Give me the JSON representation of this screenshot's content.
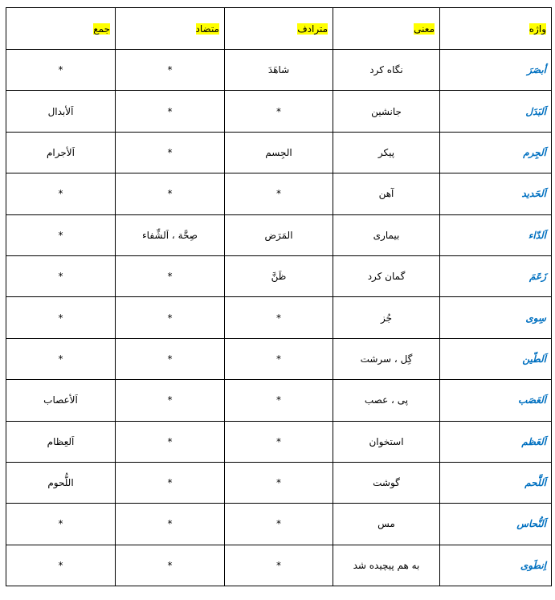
{
  "headers": [
    "واژه",
    "معنی",
    "مترادف",
    "متضاد",
    "جمع"
  ],
  "highlight_color": "#ffff00",
  "word_color": "#0070c0",
  "rows": [
    [
      "أبصَرَ",
      "نگاه کرد",
      "شاهَدَ",
      "*",
      "*"
    ],
    [
      "اَلبَدَل",
      "جانشین",
      "*",
      "*",
      "اَلأبدال"
    ],
    [
      "اَلجِرم",
      "پیکر",
      "الجِسم",
      "*",
      "اَلأجرام"
    ],
    [
      "اَلحَدید",
      "آهن",
      "*",
      "*",
      "*"
    ],
    [
      "اَلدّاء",
      "بیماری",
      "المَرَض",
      "صِحَّة ، اَلشِّفاء",
      "*"
    ],
    [
      "زَعَمَ",
      "گمان کرد",
      "ظَنَّ",
      "*",
      "*"
    ],
    [
      "سِوی",
      "جُز",
      "*",
      "*",
      "*"
    ],
    [
      "اَلطّین",
      "گِل ، سرشت",
      "*",
      "*",
      "*"
    ],
    [
      "اَلعَصَب",
      "پی ، عصب",
      "*",
      "*",
      "اَلأعصاب"
    ],
    [
      "اَلعَظم",
      "استخوان",
      "*",
      "*",
      "اَلعِظام"
    ],
    [
      "اَللَّحم",
      "گوشت",
      "*",
      "*",
      "اللُّحوم"
    ],
    [
      "اَلنُّحاس",
      "مس",
      "*",
      "*",
      "*"
    ],
    [
      "اِنطَوی",
      "به هم پیچیده شد",
      "*",
      "*",
      "*"
    ]
  ]
}
